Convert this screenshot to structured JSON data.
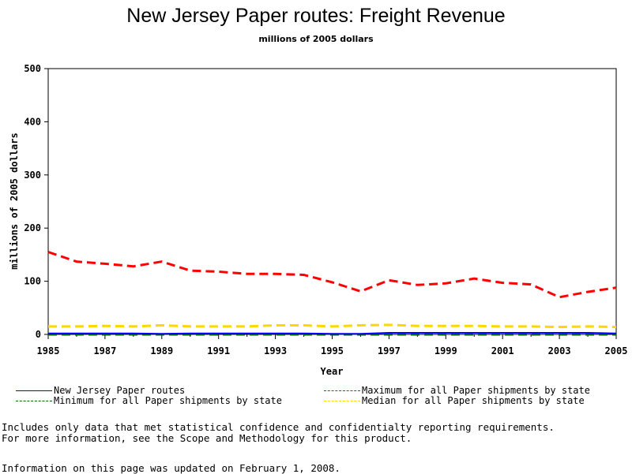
{
  "chart_data": {
    "type": "line",
    "title": "New Jersey Paper routes: Freight Revenue",
    "subtitle": "millions of 2005 dollars",
    "xlabel": "Year",
    "ylabel": "millions of 2005 dollars",
    "xlim": [
      1985,
      2005
    ],
    "ylim": [
      0,
      500
    ],
    "x_ticks": [
      "1985",
      "1987",
      "1989",
      "1991",
      "1993",
      "1995",
      "1997",
      "1999",
      "2001",
      "2003",
      "2005"
    ],
    "y_ticks": [
      "0",
      "100",
      "200",
      "300",
      "400",
      "500"
    ],
    "grid": false,
    "legend_position": "bottom",
    "x": [
      1985,
      1986,
      1987,
      1988,
      1989,
      1990,
      1991,
      1992,
      1993,
      1994,
      1995,
      1996,
      1997,
      1998,
      1999,
      2000,
      2001,
      2002,
      2003,
      2004,
      2005
    ],
    "series": [
      {
        "name": "New Jersey Paper routes",
        "color": "#0000ff",
        "dash": "solid",
        "values": [
          2,
          2,
          2,
          2,
          1,
          2,
          2,
          2,
          2,
          2,
          1,
          1,
          3,
          3,
          3,
          3,
          3,
          3,
          3,
          3,
          2
        ]
      },
      {
        "name": "Minimum for all Paper shipments by state",
        "color": "#006400",
        "dash": "dashed",
        "values": [
          0,
          0,
          0,
          0,
          0,
          0,
          0,
          0,
          0,
          0,
          0,
          0,
          0,
          0,
          0,
          0,
          0,
          0,
          0,
          0,
          0
        ]
      },
      {
        "name": "Maximum for all Paper shipments by state",
        "color": "#ff0000",
        "dash": "dashed",
        "values": [
          155,
          137,
          133,
          128,
          137,
          120,
          118,
          114,
          114,
          112,
          98,
          81,
          102,
          93,
          96,
          105,
          97,
          94,
          70,
          80,
          88
        ]
      },
      {
        "name": "Median for all Paper shipments by state",
        "color": "#ffd700",
        "dash": "dashed",
        "values": [
          15,
          15,
          16,
          15,
          17,
          15,
          15,
          15,
          17,
          17,
          15,
          17,
          18,
          16,
          16,
          16,
          15,
          15,
          14,
          15,
          14
        ]
      }
    ]
  },
  "notes": {
    "line1": "Includes only data that met statistical confidence and confidentialty reporting requirements.",
    "line2": "For more information, see the Scope and Methodology for this product.",
    "updated": "Information on this page was updated on February 1, 2008."
  }
}
